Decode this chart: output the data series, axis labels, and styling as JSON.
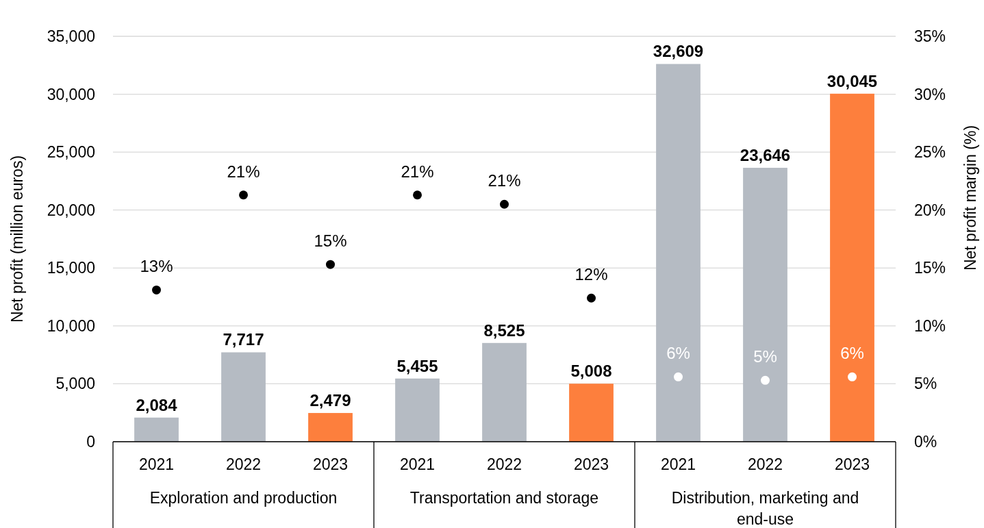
{
  "chart_data": {
    "type": "bar",
    "ylabel": "Net profit (million euros)",
    "y2label": "Net profit margin (%)",
    "categories": [
      "2021",
      "2022",
      "2023",
      "2021",
      "2022",
      "2023",
      "2021",
      "2022",
      "2023"
    ],
    "annotations": [
      "Exploration and production",
      "Transportation and storage",
      "Distribution, marketing and end-use"
    ],
    "series": [
      {
        "type": "bar",
        "values": [
          2084,
          7717,
          2479,
          5455,
          8525,
          5008,
          32609,
          23646,
          30045
        ],
        "colors": [
          "#b5bbc3",
          "#b5bbc3",
          "#fd7f3d",
          "#b5bbc3",
          "#b5bbc3",
          "#fd7f3d",
          "#b5bbc3",
          "#b5bbc3",
          "#fd7f3d"
        ],
        "value_labels": [
          "2,084",
          "7,717",
          "2,479",
          "5,455",
          "8,525",
          "5,008",
          "32,609",
          "23,646",
          "30,045"
        ]
      },
      {
        "type": "scatter",
        "axis": "y2",
        "values": [
          13.1,
          21.3,
          15.3,
          21.3,
          20.5,
          12.4,
          5.6,
          5.3,
          5.6
        ],
        "colors": [
          "#000000",
          "#000000",
          "#000000",
          "#000000",
          "#000000",
          "#000000",
          "#ffffff",
          "#ffffff",
          "#ffffff"
        ],
        "value_labels": [
          "13%",
          "21%",
          "15%",
          "21%",
          "21%",
          "12%",
          "6%",
          "5%",
          "6%"
        ]
      }
    ],
    "ylim": [
      0,
      35000
    ],
    "yticks": [
      0,
      {
        "value": 5000,
        "label": "5,000"
      },
      {
        "value": 10000,
        "label": "10,000"
      },
      {
        "value": 15000,
        "label": "15,000"
      },
      {
        "value": 20000,
        "label": "20,000"
      },
      {
        "value": 25000,
        "label": "25,000"
      },
      {
        "value": 30000,
        "label": "30,000"
      },
      {
        "value": 35000,
        "label": "35,000"
      }
    ],
    "y2lim": [
      0,
      35
    ],
    "y2ticks": [
      {
        "value": 0,
        "label": "0%"
      },
      {
        "value": 5,
        "label": "5%"
      },
      {
        "value": 10,
        "label": "10%"
      },
      {
        "value": 15,
        "label": "15%"
      },
      {
        "value": 20,
        "label": "20%"
      },
      {
        "value": 25,
        "label": "25%"
      },
      {
        "value": 30,
        "label": "30%"
      },
      {
        "value": 35,
        "label": "35%"
      }
    ],
    "grid": "y",
    "marker": "circle"
  }
}
